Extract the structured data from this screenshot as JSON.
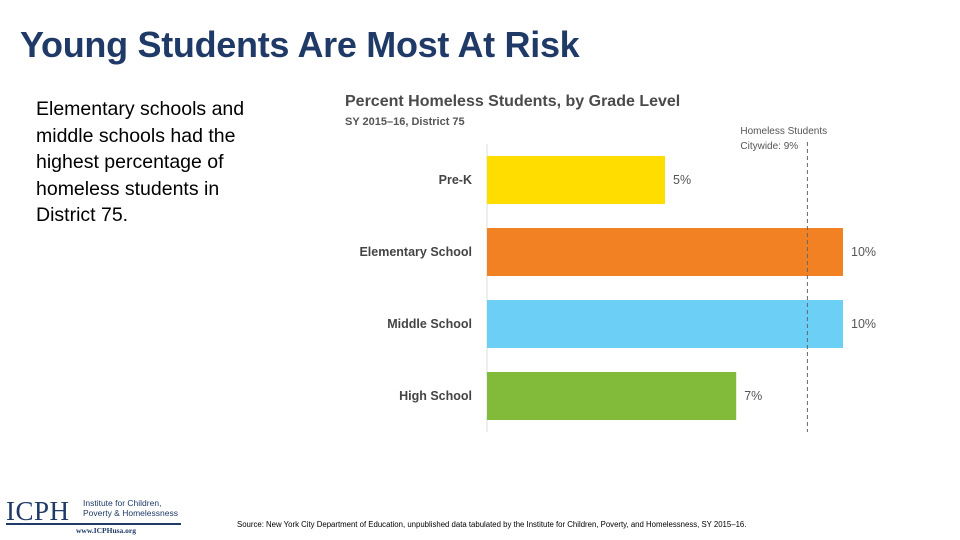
{
  "slide": {
    "title": "Young Students Are Most At Risk",
    "body": "Elementary schools and middle schools had the highest percentage of homeless students in District 75.",
    "source": "Source: New York City Department of Education, unpublished data tabulated by the Institute for Children, Poverty, and Homelessness, SY 2015–16."
  },
  "logo": {
    "main": "ICPH",
    "sub_line1": "Institute for Children,",
    "sub_line2": "Poverty & Homelessness",
    "url": "www.ICPHusa.org"
  },
  "chart_data": {
    "type": "bar",
    "orientation": "horizontal",
    "title": "Percent Homeless Students, by Grade Level",
    "subtitle": "SY 2015–16, District 75",
    "categories": [
      "Pre-K",
      "Elementary School",
      "Middle School",
      "High School"
    ],
    "values": [
      5,
      10,
      10,
      7
    ],
    "value_labels": [
      "5%",
      "10%",
      "10%",
      "7%"
    ],
    "colors": [
      "#FFDD00",
      "#F28123",
      "#6CCFF6",
      "#82BB3A"
    ],
    "reference_line": {
      "value": 9,
      "label_line1": "Homeless Students",
      "label_line2": "Citywide: 9%",
      "style": "dashed"
    },
    "xlim": [
      0,
      10
    ],
    "grid": false,
    "legend": "none"
  }
}
